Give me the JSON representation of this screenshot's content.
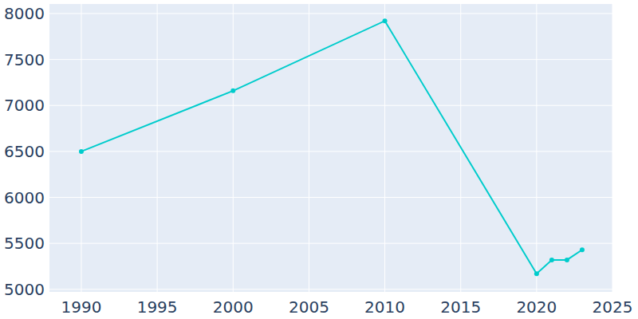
{
  "chart_data": {
    "type": "line",
    "x": [
      1990,
      2000,
      2010,
      2020,
      2021,
      2022,
      2023
    ],
    "values": [
      6500,
      7160,
      7920,
      5170,
      5320,
      5320,
      5430
    ],
    "color": "#00cccc",
    "marker": "circle",
    "xlim": [
      1987.9,
      2025
    ],
    "xticks": [
      1990,
      1995,
      2000,
      2005,
      2010,
      2015,
      2020,
      2025
    ],
    "ylim": [
      4972,
      8104
    ],
    "yticks": [
      5000,
      5500,
      6000,
      6500,
      7000,
      7500,
      8000
    ],
    "grid": true
  }
}
